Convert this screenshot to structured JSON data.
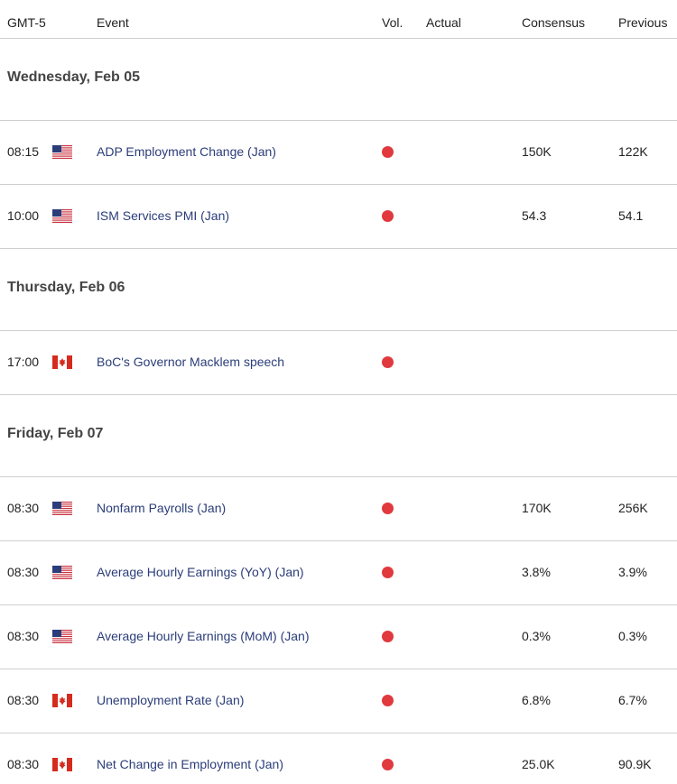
{
  "header": [
    "GMT-5",
    "Event",
    "Vol.",
    "Actual",
    "Consensus",
    "Previous"
  ],
  "days": [
    {
      "label": "Wednesday, Feb 05",
      "events": [
        {
          "time": "08:15",
          "event": "ADP Employment Change (Jan)",
          "consensus": "150K",
          "previous": "122K"
        },
        {
          "time": "10:00",
          "event": "ISM Services PMI (Jan)",
          "consensus": "54.3",
          "previous": "54.1"
        }
      ]
    },
    {
      "label": "Thursday, Feb 06",
      "events": [
        {
          "time": "17:00",
          "event": "BoC's Governor Macklem speech"
        }
      ]
    },
    {
      "label": "Friday, Feb 07",
      "events": [
        {
          "time": "08:30",
          "event": "Nonfarm Payrolls (Jan)",
          "consensus": "170K",
          "previous": "256K"
        },
        {
          "time": "08:30",
          "event": "Average Hourly Earnings (YoY) (Jan)",
          "consensus": "3.8%",
          "previous": "3.9%"
        },
        {
          "time": "08:30",
          "event": "Average Hourly Earnings (MoM) (Jan)",
          "consensus": "0.3%",
          "previous": "0.3%"
        },
        {
          "time": "08:30",
          "event": "Unemployment Rate (Jan)",
          "consensus": "6.8%",
          "previous": "6.7%"
        },
        {
          "time": "08:30",
          "event": "Net Change in Employment (Jan)",
          "consensus": "25.0K",
          "previous": "90.9K"
        }
      ]
    }
  ]
}
